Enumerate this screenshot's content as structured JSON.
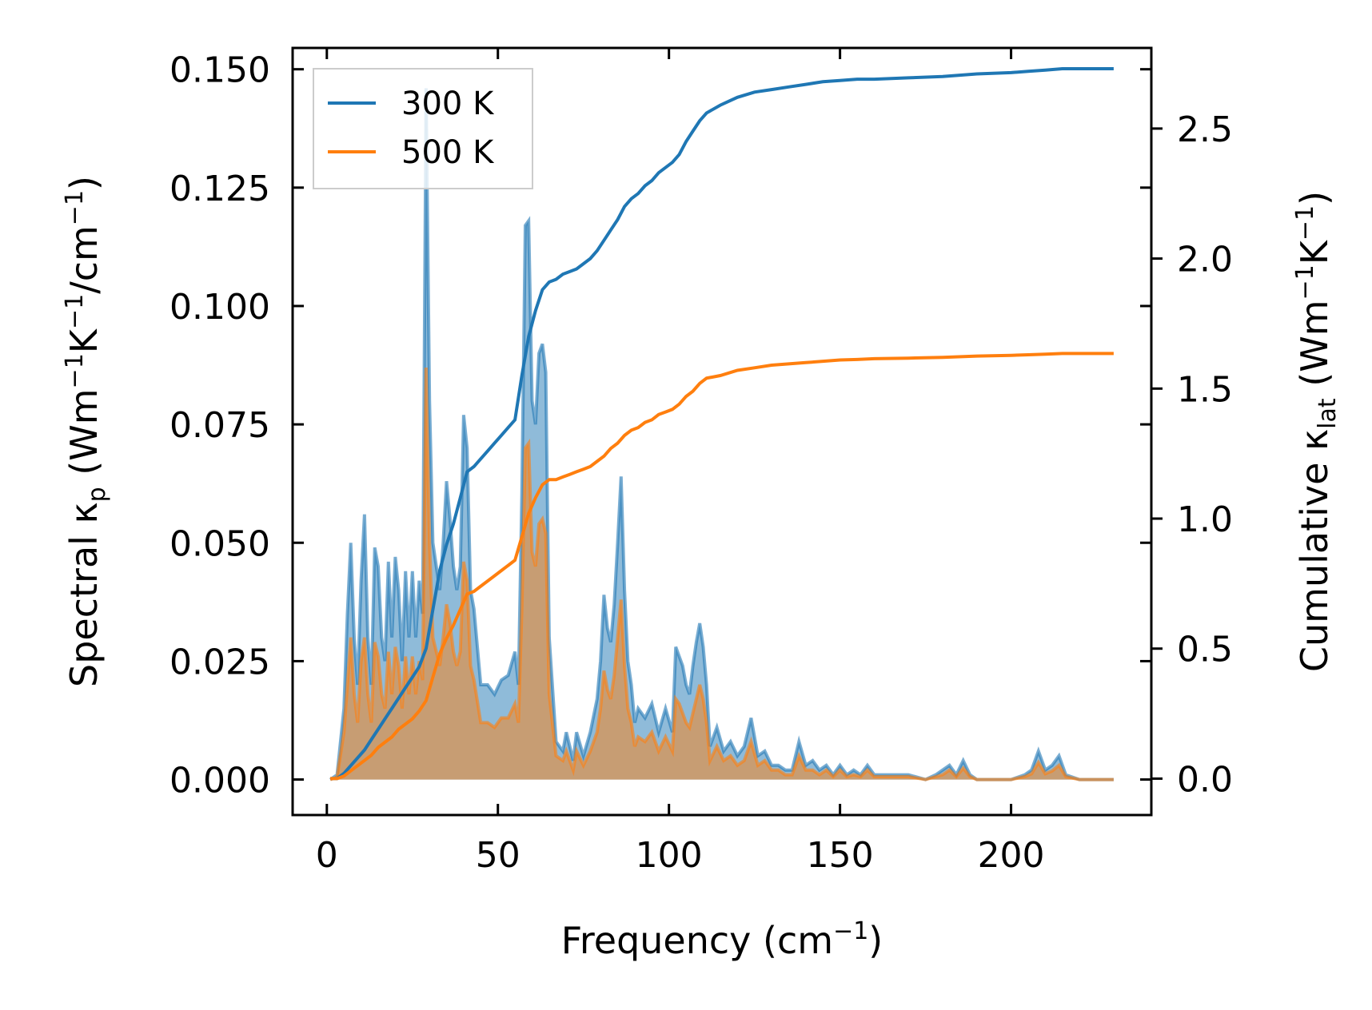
{
  "chart_data": {
    "type": "area",
    "title": "",
    "xlabel": {
      "main": "Frequency (cm",
      "sup": "−1",
      "tail": ")"
    },
    "ylabel_left": {
      "p1": "Spectral κ",
      "sub": "p",
      "p2": " (Wm",
      "sup1": "−1",
      "p3": "K",
      "sup2": "−1",
      "p4": "/cm",
      "sup3": "−1",
      "p5": ")"
    },
    "ylabel_right": {
      "p1": "Cumulative κ",
      "sub": "lat",
      "p2": " (Wm",
      "sup1": "−1",
      "p3": "K",
      "sup2": "−1",
      "p4": ")"
    },
    "xlim": [
      -10,
      241
    ],
    "ylim_left": [
      -0.0075,
      0.1545
    ],
    "ylim_right": [
      -0.14,
      2.81
    ],
    "xticks": [
      0,
      50,
      100,
      150,
      200
    ],
    "xtick_labels": [
      "0",
      "50",
      "100",
      "150",
      "200"
    ],
    "yticks_left": [
      0.0,
      0.025,
      0.05,
      0.075,
      0.1,
      0.125,
      0.15
    ],
    "ytick_labels_left": [
      "0.000",
      "0.025",
      "0.050",
      "0.075",
      "0.100",
      "0.125",
      "0.150"
    ],
    "yticks_right": [
      0.0,
      0.5,
      1.0,
      1.5,
      2.0,
      2.5
    ],
    "ytick_labels_right": [
      "0.0",
      "0.5",
      "1.0",
      "1.5",
      "2.0",
      "2.5"
    ],
    "legend": {
      "position": "top-left",
      "entries": [
        "300 K",
        "500 K"
      ]
    },
    "colors": {
      "s300": "#1f77b4",
      "s500": "#ff7f0e"
    },
    "spectral_x": [
      1,
      3,
      5,
      6,
      7,
      8,
      9,
      10,
      11,
      12,
      13,
      14,
      15,
      16,
      17,
      18,
      19,
      20,
      21,
      22,
      23,
      24,
      25,
      26,
      27,
      28,
      29,
      30,
      31,
      32,
      33,
      34,
      35,
      36,
      37,
      38,
      39,
      40,
      41,
      42,
      43,
      45,
      47,
      49,
      51,
      53,
      55,
      56,
      57,
      58,
      59,
      60,
      61,
      62,
      63,
      64,
      65,
      67,
      69,
      70,
      71,
      72,
      73,
      75,
      77,
      79,
      80,
      81,
      82,
      83,
      84,
      85,
      86,
      87,
      88,
      89,
      90,
      91,
      93,
      95,
      97,
      99,
      101,
      102,
      103,
      104,
      105,
      106,
      107,
      108,
      109,
      110,
      111,
      112,
      114,
      116,
      118,
      120,
      122,
      124,
      126,
      128,
      130,
      132,
      134,
      136,
      138,
      140,
      142,
      144,
      146,
      148,
      150,
      152,
      154,
      156,
      158,
      160,
      165,
      170,
      175,
      178,
      180,
      182,
      184,
      186,
      188,
      190,
      195,
      200,
      204,
      206,
      208,
      210,
      212,
      214,
      216,
      220,
      230
    ],
    "spectral_300": [
      0.0,
      0.001,
      0.015,
      0.035,
      0.05,
      0.03,
      0.02,
      0.042,
      0.056,
      0.03,
      0.02,
      0.049,
      0.045,
      0.03,
      0.025,
      0.046,
      0.03,
      0.047,
      0.04,
      0.025,
      0.044,
      0.03,
      0.044,
      0.03,
      0.042,
      0.035,
      0.146,
      0.08,
      0.05,
      0.045,
      0.04,
      0.05,
      0.063,
      0.055,
      0.045,
      0.04,
      0.045,
      0.077,
      0.07,
      0.04,
      0.036,
      0.02,
      0.02,
      0.018,
      0.021,
      0.022,
      0.027,
      0.02,
      0.06,
      0.117,
      0.118,
      0.08,
      0.075,
      0.09,
      0.092,
      0.086,
      0.03,
      0.008,
      0.006,
      0.01,
      0.007,
      0.004,
      0.01,
      0.005,
      0.01,
      0.017,
      0.025,
      0.039,
      0.032,
      0.029,
      0.037,
      0.05,
      0.064,
      0.04,
      0.025,
      0.02,
      0.012,
      0.015,
      0.013,
      0.016,
      0.01,
      0.015,
      0.01,
      0.028,
      0.026,
      0.024,
      0.02,
      0.018,
      0.024,
      0.029,
      0.033,
      0.028,
      0.02,
      0.007,
      0.011,
      0.006,
      0.008,
      0.005,
      0.007,
      0.013,
      0.005,
      0.006,
      0.003,
      0.003,
      0.002,
      0.002,
      0.008,
      0.003,
      0.004,
      0.002,
      0.003,
      0.001,
      0.003,
      0.001,
      0.002,
      0.001,
      0.003,
      0.001,
      0.001,
      0.001,
      0.0,
      0.001,
      0.002,
      0.003,
      0.001,
      0.004,
      0.001,
      0.0,
      0.0,
      0.0,
      0.001,
      0.002,
      0.006,
      0.002,
      0.003,
      0.005,
      0.001,
      0.0,
      0.0
    ],
    "spectral_500": [
      0.0,
      0.0005,
      0.01,
      0.02,
      0.03,
      0.018,
      0.012,
      0.025,
      0.03,
      0.018,
      0.012,
      0.029,
      0.026,
      0.018,
      0.015,
      0.027,
      0.018,
      0.028,
      0.024,
      0.015,
      0.026,
      0.018,
      0.026,
      0.018,
      0.025,
      0.021,
      0.087,
      0.05,
      0.03,
      0.027,
      0.024,
      0.03,
      0.037,
      0.033,
      0.027,
      0.024,
      0.027,
      0.046,
      0.042,
      0.024,
      0.021,
      0.012,
      0.012,
      0.011,
      0.013,
      0.013,
      0.016,
      0.012,
      0.036,
      0.07,
      0.071,
      0.048,
      0.045,
      0.054,
      0.055,
      0.052,
      0.018,
      0.005,
      0.004,
      0.006,
      0.004,
      0.002,
      0.006,
      0.003,
      0.006,
      0.01,
      0.015,
      0.023,
      0.019,
      0.017,
      0.022,
      0.03,
      0.038,
      0.024,
      0.015,
      0.012,
      0.007,
      0.009,
      0.008,
      0.01,
      0.006,
      0.009,
      0.006,
      0.017,
      0.016,
      0.014,
      0.012,
      0.011,
      0.014,
      0.017,
      0.02,
      0.017,
      0.012,
      0.004,
      0.007,
      0.004,
      0.005,
      0.003,
      0.004,
      0.008,
      0.003,
      0.004,
      0.002,
      0.002,
      0.001,
      0.001,
      0.005,
      0.002,
      0.002,
      0.001,
      0.002,
      0.0006,
      0.002,
      0.0006,
      0.001,
      0.0006,
      0.002,
      0.0006,
      0.0006,
      0.0006,
      0.0,
      0.0006,
      0.001,
      0.002,
      0.0006,
      0.0024,
      0.0006,
      0.0,
      0.0,
      0.0,
      0.0006,
      0.0012,
      0.0036,
      0.0012,
      0.0018,
      0.003,
      0.0006,
      0.0,
      0.0
    ],
    "cumulative_x": [
      1,
      3,
      5,
      7,
      9,
      11,
      13,
      15,
      17,
      19,
      21,
      23,
      25,
      27,
      29,
      31,
      33,
      35,
      37,
      39,
      41,
      43,
      45,
      47,
      49,
      51,
      53,
      55,
      57,
      59,
      61,
      63,
      65,
      67,
      69,
      71,
      73,
      75,
      77,
      79,
      81,
      83,
      85,
      87,
      89,
      91,
      93,
      95,
      97,
      99,
      101,
      103,
      105,
      107,
      109,
      111,
      115,
      120,
      125,
      130,
      135,
      140,
      145,
      150,
      155,
      160,
      170,
      180,
      190,
      200,
      205,
      210,
      215,
      220,
      230
    ],
    "cumulative_300": [
      0.0,
      0.0,
      0.02,
      0.05,
      0.08,
      0.11,
      0.15,
      0.19,
      0.23,
      0.27,
      0.31,
      0.35,
      0.39,
      0.43,
      0.5,
      0.65,
      0.8,
      0.9,
      0.98,
      1.08,
      1.18,
      1.2,
      1.23,
      1.26,
      1.29,
      1.32,
      1.35,
      1.38,
      1.55,
      1.7,
      1.8,
      1.88,
      1.91,
      1.92,
      1.94,
      1.95,
      1.96,
      1.98,
      2.0,
      2.03,
      2.07,
      2.11,
      2.15,
      2.2,
      2.23,
      2.25,
      2.28,
      2.3,
      2.33,
      2.35,
      2.37,
      2.4,
      2.45,
      2.49,
      2.53,
      2.56,
      2.59,
      2.62,
      2.64,
      2.65,
      2.66,
      2.67,
      2.68,
      2.685,
      2.69,
      2.69,
      2.695,
      2.7,
      2.71,
      2.715,
      2.72,
      2.725,
      2.73,
      2.73,
      2.73
    ],
    "cumulative_500": [
      0.0,
      0.0,
      0.01,
      0.03,
      0.05,
      0.07,
      0.09,
      0.12,
      0.14,
      0.16,
      0.19,
      0.21,
      0.23,
      0.26,
      0.3,
      0.39,
      0.48,
      0.54,
      0.59,
      0.65,
      0.71,
      0.72,
      0.74,
      0.76,
      0.78,
      0.8,
      0.82,
      0.84,
      0.93,
      1.02,
      1.08,
      1.13,
      1.15,
      1.15,
      1.16,
      1.17,
      1.18,
      1.19,
      1.2,
      1.22,
      1.24,
      1.27,
      1.29,
      1.32,
      1.34,
      1.35,
      1.37,
      1.38,
      1.4,
      1.41,
      1.42,
      1.44,
      1.47,
      1.49,
      1.52,
      1.54,
      1.55,
      1.57,
      1.58,
      1.59,
      1.595,
      1.6,
      1.605,
      1.61,
      1.612,
      1.615,
      1.617,
      1.62,
      1.625,
      1.628,
      1.63,
      1.632,
      1.635,
      1.635,
      1.635
    ]
  }
}
